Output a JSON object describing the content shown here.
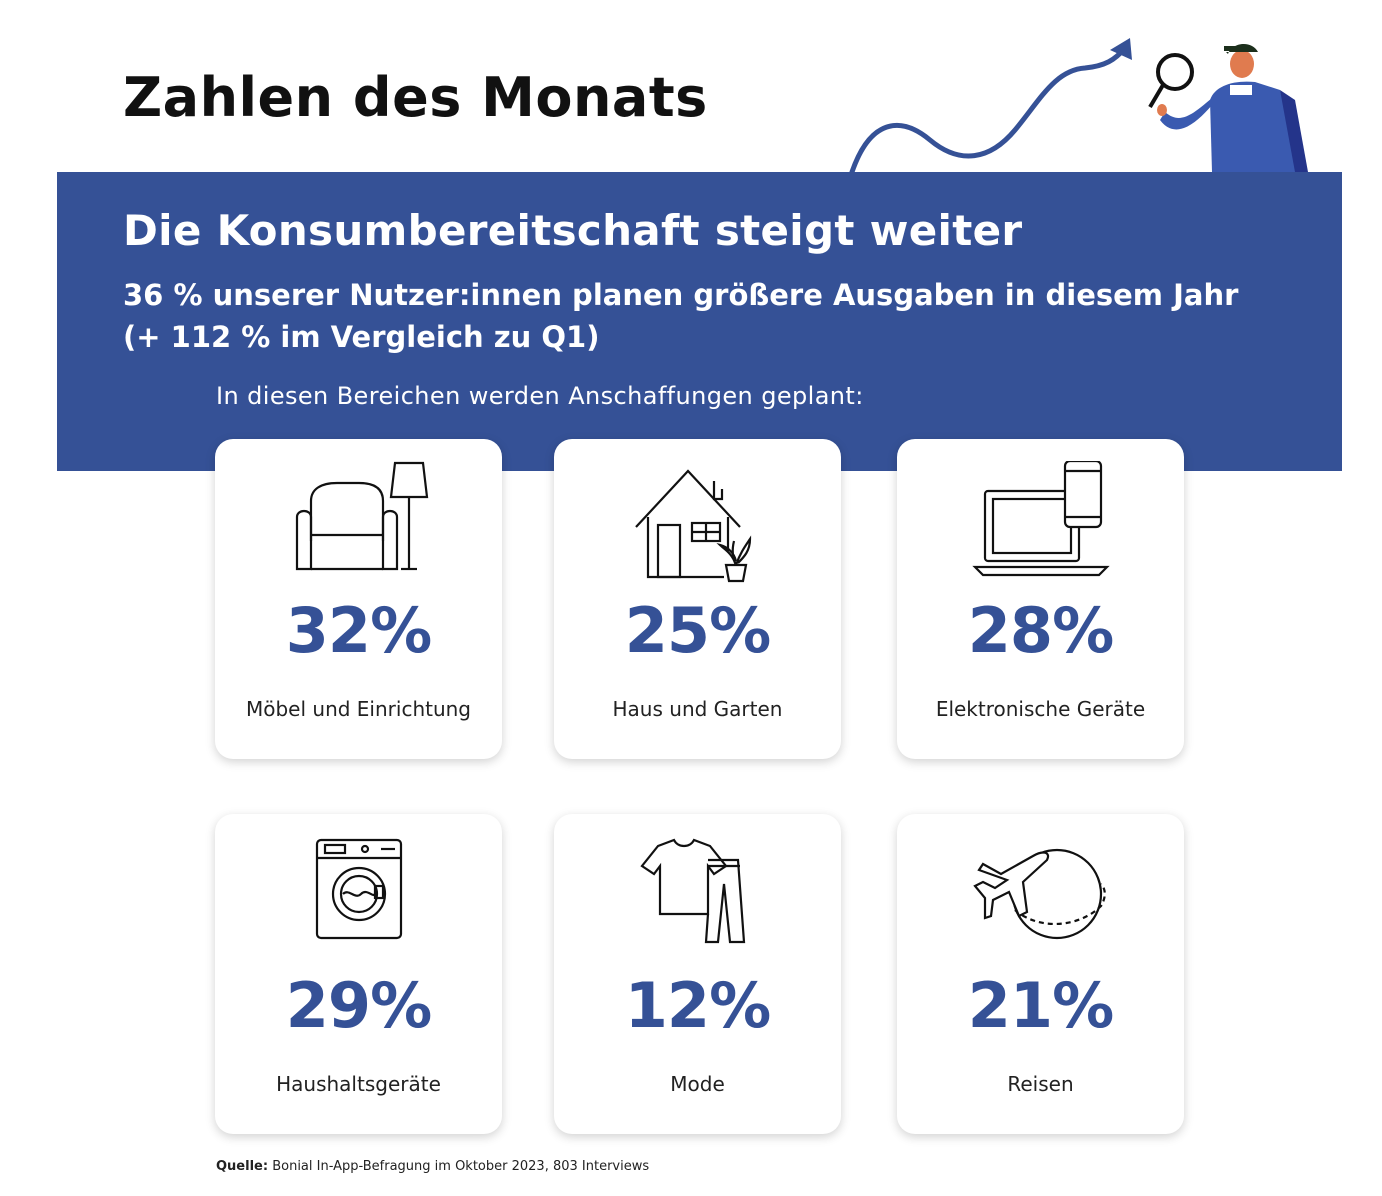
{
  "page": {
    "title": "Zahlen des Monats"
  },
  "banner": {
    "heading": "Die Konsumbereitschaft steigt weiter",
    "subheading_line1": "36 % unserer Nutzer:innen planen größere Ausgaben in diesem Jahr",
    "subheading_line2": "(+ 112 % im Vergleich zu Q1)",
    "intro": "In diesen Bereichen werden Anschaffungen geplant:"
  },
  "cards": [
    {
      "value": "32%",
      "label": "Möbel und Einrichtung",
      "icon": "armchair-lamp-icon"
    },
    {
      "value": "25%",
      "label": "Haus und Garten",
      "icon": "house-plant-icon"
    },
    {
      "value": "28%",
      "label": "Elektronische Geräte",
      "icon": "laptop-phone-icon"
    },
    {
      "value": "29%",
      "label": "Haushaltsgeräte",
      "icon": "washing-machine-icon"
    },
    {
      "value": "12%",
      "label": "Mode",
      "icon": "clothes-icon"
    },
    {
      "value": "21%",
      "label": "Reisen",
      "icon": "plane-globe-icon"
    }
  ],
  "source": {
    "label": "Quelle:",
    "text": "Bonial In-App-Befragung im Oktober 2023, 803 Interviews"
  },
  "colors": {
    "brand_blue": "#355196",
    "text_dark": "#111111",
    "card_bg": "#ffffff"
  }
}
